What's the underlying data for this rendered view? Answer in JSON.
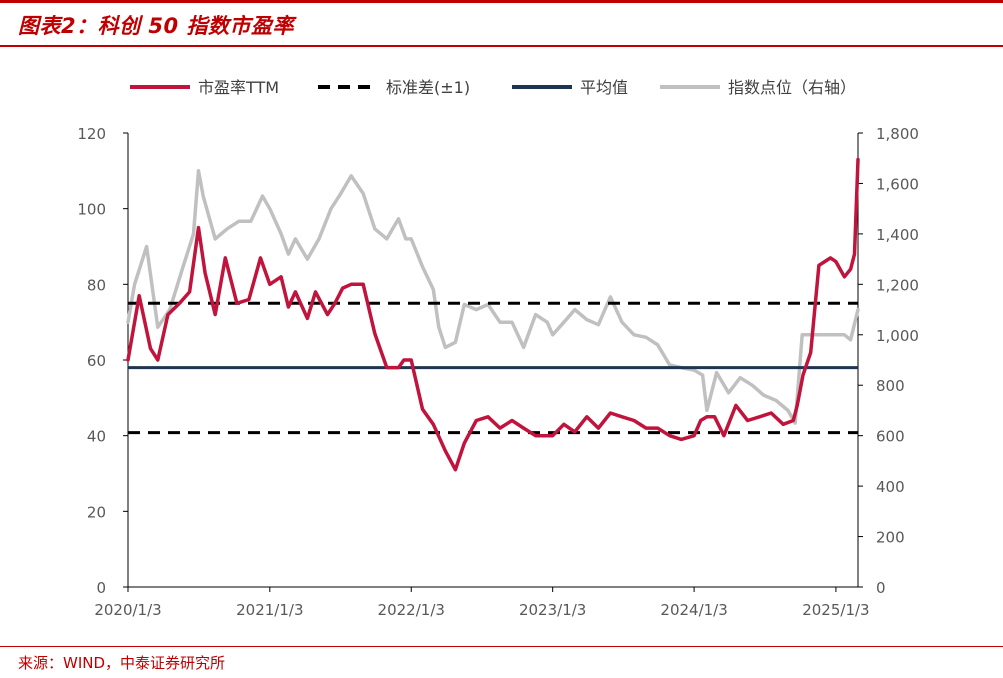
{
  "header": {
    "title": "图表2：科创 50 指数市盈率"
  },
  "footer": {
    "source": "来源：WIND，中泰证券研究所"
  },
  "chart_data": {
    "type": "line",
    "x_labels": [
      "2020/1/3",
      "2021/1/3",
      "2022/1/3",
      "2023/1/3",
      "2024/1/3",
      "2025/1/3"
    ],
    "x_range": [
      "2020-01-03",
      "2025-03-01"
    ],
    "y_left": {
      "ticks": [
        0,
        20,
        40,
        60,
        80,
        100,
        120
      ],
      "ylim": [
        0,
        120
      ]
    },
    "y_right": {
      "ticks": [
        "0",
        "200",
        "400",
        "600",
        "800",
        "1,000",
        "1,200",
        "1,400",
        "1,600",
        "1,800"
      ],
      "ylim": [
        0,
        1800
      ]
    },
    "legend": {
      "position": "top",
      "items": [
        {
          "label": "市盈率TTM",
          "color": "#c0143c",
          "style": "solid"
        },
        {
          "label": "标准差(±1)",
          "color": "#000000",
          "style": "dashed"
        },
        {
          "label": "平均值",
          "color": "#1f3450",
          "style": "solid"
        },
        {
          "label": "指数点位（右轴）",
          "color": "#c0c0c0",
          "style": "solid"
        }
      ]
    },
    "reference_lines": {
      "mean": 58,
      "std_upper": 75,
      "std_lower": 40.8
    },
    "series": [
      {
        "name": "市盈率TTM",
        "axis": "left",
        "color": "#c0143c",
        "x": [
          "2020-01-03",
          "2020-02-01",
          "2020-03-01",
          "2020-03-20",
          "2020-04-15",
          "2020-05-15",
          "2020-06-10",
          "2020-07-03",
          "2020-07-20",
          "2020-08-15",
          "2020-09-10",
          "2020-10-10",
          "2020-11-10",
          "2020-12-10",
          "2021-01-03",
          "2021-02-01",
          "2021-02-20",
          "2021-03-10",
          "2021-04-10",
          "2021-05-01",
          "2021-06-01",
          "2021-06-20",
          "2021-07-10",
          "2021-08-01",
          "2021-09-01",
          "2021-10-01",
          "2021-11-01",
          "2021-12-01",
          "2021-12-15",
          "2022-01-03",
          "2022-02-01",
          "2022-03-01",
          "2022-04-01",
          "2022-04-27",
          "2022-05-20",
          "2022-06-20",
          "2022-07-20",
          "2022-08-20",
          "2022-09-20",
          "2022-10-20",
          "2022-11-20",
          "2022-12-20",
          "2023-01-03",
          "2023-02-01",
          "2023-03-01",
          "2023-04-01",
          "2023-05-01",
          "2023-06-01",
          "2023-07-01",
          "2023-08-01",
          "2023-09-01",
          "2023-10-01",
          "2023-11-01",
          "2023-12-01",
          "2024-01-03",
          "2024-01-20",
          "2024-02-05",
          "2024-02-25",
          "2024-03-20",
          "2024-04-20",
          "2024-05-20",
          "2024-06-20",
          "2024-07-20",
          "2024-08-20",
          "2024-09-15",
          "2024-09-25",
          "2024-10-10",
          "2024-10-30",
          "2024-11-20",
          "2024-12-20",
          "2025-01-03",
          "2025-01-25",
          "2025-02-10",
          "2025-02-20",
          "2025-03-01"
        ],
        "values": [
          60,
          77,
          63,
          60,
          72,
          75,
          78,
          95,
          83,
          72,
          87,
          75,
          76,
          87,
          80,
          82,
          74,
          78,
          71,
          78,
          72,
          75,
          79,
          80,
          80,
          67,
          58,
          58,
          60,
          60,
          47,
          43,
          36,
          31,
          38,
          44,
          45,
          42,
          44,
          42,
          40,
          40,
          40,
          43,
          41,
          45,
          42,
          46,
          45,
          44,
          42,
          42,
          40,
          39,
          40,
          44,
          45,
          45,
          40,
          48,
          44,
          45,
          46,
          43,
          44,
          48,
          56,
          62,
          85,
          87,
          86,
          82,
          84,
          88,
          113
        ]
      },
      {
        "name": "指数点位（右轴）",
        "axis": "right",
        "color": "#c0c0c0",
        "x": [
          "2020-01-03",
          "2020-01-20",
          "2020-02-20",
          "2020-03-20",
          "2020-04-20",
          "2020-05-20",
          "2020-06-20",
          "2020-07-03",
          "2020-07-15",
          "2020-08-15",
          "2020-09-15",
          "2020-10-15",
          "2020-11-15",
          "2020-12-15",
          "2021-01-03",
          "2021-02-01",
          "2021-02-20",
          "2021-03-10",
          "2021-04-10",
          "2021-05-10",
          "2021-06-10",
          "2021-07-01",
          "2021-08-01",
          "2021-09-01",
          "2021-10-01",
          "2021-11-01",
          "2021-12-01",
          "2021-12-20",
          "2022-01-03",
          "2022-02-01",
          "2022-03-01",
          "2022-03-15",
          "2022-04-01",
          "2022-04-27",
          "2022-05-20",
          "2022-06-20",
          "2022-07-20",
          "2022-08-20",
          "2022-09-20",
          "2022-10-20",
          "2022-11-20",
          "2022-12-20",
          "2023-01-03",
          "2023-02-01",
          "2023-03-01",
          "2023-04-01",
          "2023-05-01",
          "2023-06-01",
          "2023-07-01",
          "2023-08-01",
          "2023-09-01",
          "2023-10-01",
          "2023-11-01",
          "2023-12-01",
          "2024-01-03",
          "2024-01-25",
          "2024-02-05",
          "2024-03-01",
          "2024-04-01",
          "2024-05-01",
          "2024-06-01",
          "2024-07-01",
          "2024-08-01",
          "2024-09-01",
          "2024-09-20",
          "2024-10-08",
          "2024-10-20",
          "2024-11-20",
          "2024-12-20",
          "2025-01-03",
          "2025-01-25",
          "2025-02-10",
          "2025-03-01"
        ],
        "values": [
          1050,
          1200,
          1350,
          1030,
          1100,
          1250,
          1400,
          1650,
          1550,
          1380,
          1420,
          1450,
          1450,
          1550,
          1500,
          1400,
          1320,
          1380,
          1300,
          1380,
          1500,
          1550,
          1630,
          1560,
          1420,
          1380,
          1460,
          1380,
          1380,
          1270,
          1180,
          1030,
          950,
          970,
          1120,
          1100,
          1120,
          1050,
          1050,
          950,
          1080,
          1050,
          1000,
          1050,
          1100,
          1060,
          1040,
          1150,
          1050,
          1000,
          990,
          960,
          880,
          870,
          860,
          840,
          700,
          850,
          770,
          830,
          800,
          760,
          740,
          700,
          650,
          1000,
          1000,
          1000,
          1000,
          1000,
          1000,
          980,
          1100
        ]
      }
    ]
  }
}
